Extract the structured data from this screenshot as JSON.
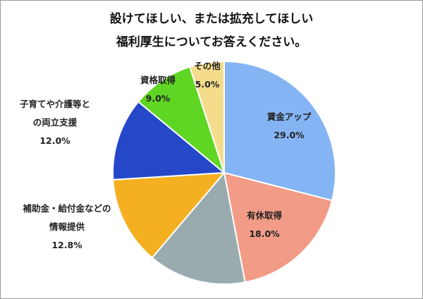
{
  "chart_data": {
    "type": "pie",
    "title_lines": [
      "設けてほしい、または拡充してほしい",
      "福利厚生についてお答えください。"
    ],
    "slices": [
      {
        "label": "賃金アップ",
        "value": 29.0,
        "value_text": "29.0%",
        "color": "#84b4f4"
      },
      {
        "label": "有休取得",
        "value": 18.0,
        "value_text": "18.0%",
        "color": "#f29b86"
      },
      {
        "label": "",
        "value": 14.2,
        "value_text": "",
        "color": "#9aabb0"
      },
      {
        "label": "補助金・給付金などの情報提供",
        "value": 12.8,
        "value_text": "12.8%",
        "color": "#f5b021"
      },
      {
        "label": "子育てや介護等との両立支援",
        "value": 12.0,
        "value_text": "12.0%",
        "color": "#2548c8"
      },
      {
        "label": "資格取得",
        "value": 9.0,
        "value_text": "9.0%",
        "color": "#5fd624"
      },
      {
        "label": "その他",
        "value": 5.0,
        "value_text": "5.0%",
        "color": "#f5dc8c"
      }
    ],
    "label_lines": [
      [
        "賃金アップ",
        "29.0%"
      ],
      [
        "有休取得",
        "18.0%"
      ],
      [],
      [
        "補助金・給付金などの",
        "情報提供",
        "12.8%"
      ],
      [
        "子育てや介護等と",
        "の両立支援",
        "12.0%"
      ],
      [
        "資格取得",
        "9.0%"
      ],
      [
        "その他",
        "5.0%"
      ]
    ]
  }
}
